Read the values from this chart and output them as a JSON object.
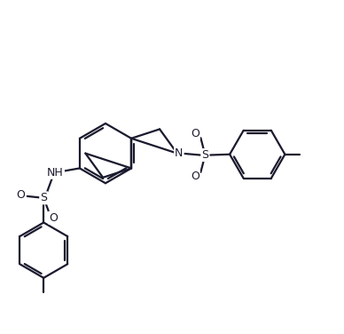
{
  "bg_color": "#ffffff",
  "bond_color": "#1a1a2e",
  "lw": 1.6,
  "figsize": [
    3.88,
    3.76
  ],
  "dpi": 100,
  "xlim": [
    0,
    10
  ],
  "ylim": [
    0,
    9.7
  ]
}
